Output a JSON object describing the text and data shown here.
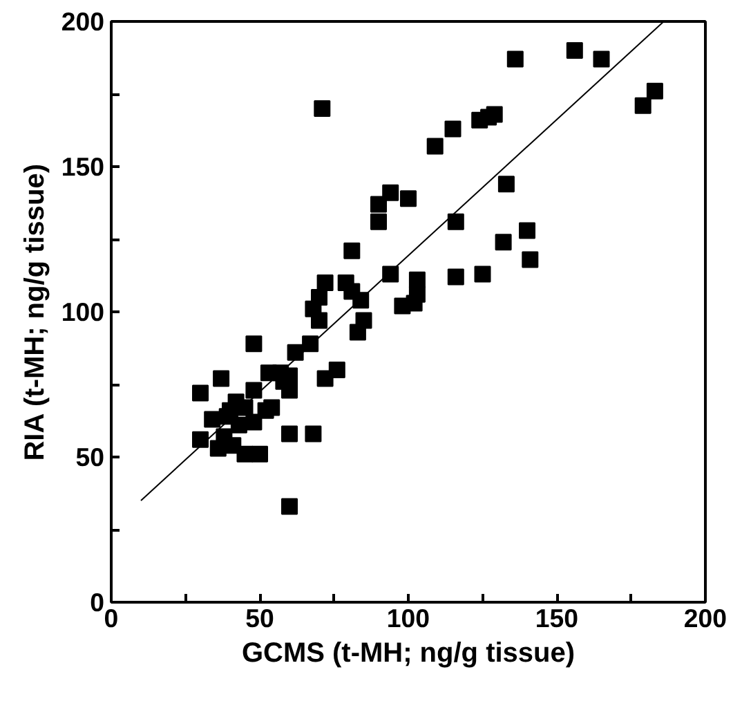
{
  "chart_data": {
    "type": "scatter",
    "xlabel": "GCMS (t-MH; ng/g tissue)",
    "ylabel": "RIA (t-MH; ng/g tissue)",
    "xlim": [
      0,
      200
    ],
    "ylim": [
      0,
      200
    ],
    "xticks": [
      0,
      {
        "value": 25,
        "label": null
      },
      50,
      {
        "value": 75,
        "label": null
      },
      100,
      {
        "value": 125,
        "label": null
      },
      150,
      {
        "value": 175,
        "label": null
      },
      200
    ],
    "yticks": [
      0,
      {
        "value": 25,
        "label": null
      },
      50,
      {
        "value": 75,
        "label": null
      },
      100,
      {
        "value": 125,
        "label": null
      },
      150,
      {
        "value": 175,
        "label": null
      },
      200
    ],
    "marker": "square",
    "series": [
      {
        "color": "#000000",
        "x": [
          183,
          179,
          156,
          165,
          136,
          71,
          129,
          127,
          124,
          115,
          109,
          133,
          94,
          90,
          100,
          90,
          116,
          81,
          132,
          140,
          141,
          94,
          72,
          70,
          68,
          70,
          79,
          81,
          84,
          85,
          83,
          103,
          103,
          102,
          98,
          116,
          125,
          67,
          48,
          62,
          53,
          57,
          60,
          60,
          58,
          76,
          72,
          30,
          37,
          48,
          42,
          40,
          45,
          39,
          43,
          48,
          52,
          34,
          30,
          36,
          41,
          38,
          50,
          45,
          60,
          68,
          60,
          54
        ],
        "values": [
          176,
          171,
          190,
          187,
          187,
          170,
          168,
          167,
          166,
          163,
          157,
          144,
          141,
          137,
          139,
          131,
          131,
          121,
          124,
          128,
          118,
          113,
          110,
          105,
          101,
          97,
          110,
          107,
          104,
          97,
          93,
          111,
          106,
          103,
          102,
          112,
          113,
          89,
          89,
          86,
          79,
          79,
          78,
          73,
          76,
          80,
          77,
          72,
          77,
          73,
          69,
          66,
          67,
          64,
          61,
          62,
          66,
          63,
          56,
          53,
          54,
          57,
          51,
          51,
          58,
          58,
          33,
          67
        ]
      },
      {
        "type": "line",
        "color": "#000000",
        "line_style": "solid",
        "marker": "none",
        "x": [
          10,
          186
        ],
        "values": [
          35,
          200
        ]
      }
    ]
  }
}
